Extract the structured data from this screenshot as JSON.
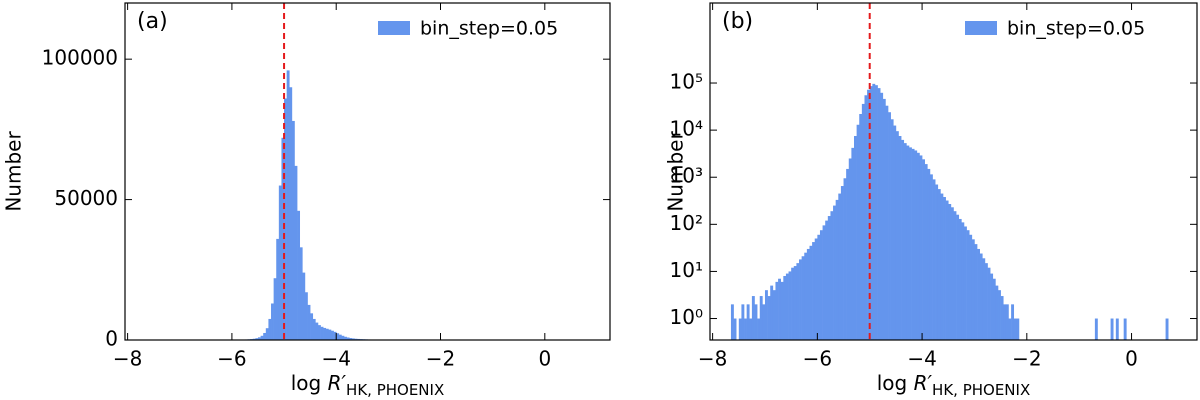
{
  "chart_data": [
    {
      "type": "histogram",
      "panel_label": "(a)",
      "ylabel": "Number",
      "xlabel": {
        "prefix": "log ",
        "symbol": "R′",
        "subscript": "HK, PHOENIX"
      },
      "bins": [
        -7.7,
        -7.65,
        -7.6,
        -7.55,
        -7.5,
        -7.45,
        -7.4,
        -7.35,
        -7.3,
        -7.25,
        -7.2,
        -7.15,
        -7.1,
        -7.05,
        -7,
        -6.95,
        -6.9,
        -6.85,
        -6.8,
        -6.75,
        -6.7,
        -6.65,
        -6.6,
        -6.55,
        -6.5,
        -6.45,
        -6.4,
        -6.35,
        -6.3,
        -6.25,
        -6.2,
        -6.15,
        -6.1,
        -6.05,
        -6,
        -5.95,
        -5.9,
        -5.85,
        -5.8,
        -5.75,
        -5.7,
        -5.65,
        -5.6,
        -5.55,
        -5.5,
        -5.45,
        -5.4,
        -5.35,
        -5.3,
        -5.25,
        -5.2,
        -5.15,
        -5.1,
        -5.05,
        -5,
        -4.95,
        -4.9,
        -4.85,
        -4.8,
        -4.75,
        -4.7,
        -4.65,
        -4.6,
        -4.55,
        -4.5,
        -4.45,
        -4.4,
        -4.35,
        -4.3,
        -4.25,
        -4.2,
        -4.15,
        -4.1,
        -4.05,
        -4,
        -3.95,
        -3.9,
        -3.85,
        -3.8,
        -3.75,
        -3.7,
        -3.65,
        -3.6,
        -3.55,
        -3.5,
        -3.45,
        -3.4,
        -3.35,
        -3.3,
        -3.25,
        -3.2,
        -3.15,
        -3.1,
        -3.05,
        -3,
        -2.95,
        -2.9,
        -2.85,
        -2.8,
        -2.75,
        -2.7,
        -2.65,
        -2.6,
        -2.55,
        -2.5,
        -2.45,
        -2.4,
        -2.35,
        -2.3,
        -2.25,
        -2.2,
        -2.15,
        -2.1,
        -2.05,
        -2,
        -1.95,
        -1.9,
        -1.85,
        -1.8,
        -1.75,
        -1.7,
        -1.65,
        -1.6,
        -1.55,
        -1.5,
        -1.45,
        -1.4,
        -1.35,
        -1.3,
        -1.25,
        -1.2,
        -1.15,
        -1.1,
        -1.05,
        -1,
        -0.95,
        -0.9,
        -0.85,
        -0.8,
        -0.75,
        -0.7,
        -0.65,
        -0.6,
        -0.55,
        -0.5,
        -0.45,
        -0.4,
        -0.35,
        -0.3,
        -0.25,
        -0.2,
        -0.15,
        -0.1,
        -0.05,
        0,
        0.05,
        0.1,
        0.15,
        0.2,
        0.25,
        0.3,
        0.35,
        0.4,
        0.45,
        0.5,
        0.55,
        0.6,
        0.65,
        0.7,
        0.75
      ],
      "series": [
        {
          "name": "bin_step=0.05",
          "color": "#6495ed",
          "values": [
            0,
            2,
            1,
            0,
            1,
            2,
            1,
            2,
            1,
            3,
            2,
            1,
            3,
            2,
            4,
            3,
            5,
            4,
            6,
            7,
            6,
            8,
            9,
            10,
            12,
            13,
            15,
            18,
            21,
            25,
            30,
            35,
            42,
            50,
            60,
            75,
            95,
            120,
            150,
            190,
            250,
            330,
            450,
            650,
            950,
            1500,
            2500,
            4200,
            7500,
            13000,
            22000,
            36000,
            55000,
            72000,
            86000,
            96000,
            90000,
            78000,
            62000,
            46000,
            33000,
            24000,
            17000,
            12500,
            9500,
            7500,
            6200,
            5300,
            4700,
            4300,
            4000,
            3700,
            3300,
            2900,
            2400,
            1900,
            1500,
            1150,
            900,
            700,
            560,
            450,
            380,
            320,
            270,
            230,
            190,
            160,
            130,
            110,
            90,
            75,
            60,
            48,
            38,
            30,
            24,
            19,
            15,
            12,
            9,
            7,
            5,
            4,
            3,
            2,
            2,
            1,
            2,
            1,
            1,
            0,
            0,
            0,
            0,
            0,
            0,
            0,
            0,
            0,
            0,
            0,
            0,
            0,
            0,
            0,
            0,
            0,
            0,
            0,
            0,
            0,
            0,
            0,
            0,
            0,
            0,
            0,
            0,
            0,
            1,
            0,
            0,
            0,
            0,
            0,
            1,
            0,
            1,
            0,
            0,
            1,
            0,
            0,
            0,
            0,
            0,
            0,
            0,
            0,
            0,
            0,
            0,
            0,
            0,
            0,
            0,
            1
          ]
        }
      ],
      "vline": {
        "x": -5,
        "color": "#e41a1c"
      },
      "xlim": [
        -8.05,
        1.25
      ],
      "xticks": [
        {
          "value": -8,
          "label": "−8"
        },
        {
          "value": -6,
          "label": "−6"
        },
        {
          "value": -4,
          "label": "−4"
        },
        {
          "value": -2,
          "label": "−2"
        },
        0
      ],
      "ylim": [
        0,
        120000
      ],
      "yticks": [
        0,
        50000,
        100000
      ],
      "yscale": "linear",
      "legend": "upper right"
    },
    {
      "type": "histogram",
      "panel_label": "(b)",
      "ylabel": "Number",
      "xlabel": {
        "prefix": "log ",
        "symbol": "R′",
        "subscript": "HK, PHOENIX"
      },
      "bins": [
        -7.7,
        -7.65,
        -7.6,
        -7.55,
        -7.5,
        -7.45,
        -7.4,
        -7.35,
        -7.3,
        -7.25,
        -7.2,
        -7.15,
        -7.1,
        -7.05,
        -7,
        -6.95,
        -6.9,
        -6.85,
        -6.8,
        -6.75,
        -6.7,
        -6.65,
        -6.6,
        -6.55,
        -6.5,
        -6.45,
        -6.4,
        -6.35,
        -6.3,
        -6.25,
        -6.2,
        -6.15,
        -6.1,
        -6.05,
        -6,
        -5.95,
        -5.9,
        -5.85,
        -5.8,
        -5.75,
        -5.7,
        -5.65,
        -5.6,
        -5.55,
        -5.5,
        -5.45,
        -5.4,
        -5.35,
        -5.3,
        -5.25,
        -5.2,
        -5.15,
        -5.1,
        -5.05,
        -5,
        -4.95,
        -4.9,
        -4.85,
        -4.8,
        -4.75,
        -4.7,
        -4.65,
        -4.6,
        -4.55,
        -4.5,
        -4.45,
        -4.4,
        -4.35,
        -4.3,
        -4.25,
        -4.2,
        -4.15,
        -4.1,
        -4.05,
        -4,
        -3.95,
        -3.9,
        -3.85,
        -3.8,
        -3.75,
        -3.7,
        -3.65,
        -3.6,
        -3.55,
        -3.5,
        -3.45,
        -3.4,
        -3.35,
        -3.3,
        -3.25,
        -3.2,
        -3.15,
        -3.1,
        -3.05,
        -3,
        -2.95,
        -2.9,
        -2.85,
        -2.8,
        -2.75,
        -2.7,
        -2.65,
        -2.6,
        -2.55,
        -2.5,
        -2.45,
        -2.4,
        -2.35,
        -2.3,
        -2.25,
        -2.2,
        -2.15,
        -2.1,
        -2.05,
        -2,
        -1.95,
        -1.9,
        -1.85,
        -1.8,
        -1.75,
        -1.7,
        -1.65,
        -1.6,
        -1.55,
        -1.5,
        -1.45,
        -1.4,
        -1.35,
        -1.3,
        -1.25,
        -1.2,
        -1.15,
        -1.1,
        -1.05,
        -1,
        -0.95,
        -0.9,
        -0.85,
        -0.8,
        -0.75,
        -0.7,
        -0.65,
        -0.6,
        -0.55,
        -0.5,
        -0.45,
        -0.4,
        -0.35,
        -0.3,
        -0.25,
        -0.2,
        -0.15,
        -0.1,
        -0.05,
        0,
        0.05,
        0.1,
        0.15,
        0.2,
        0.25,
        0.3,
        0.35,
        0.4,
        0.45,
        0.5,
        0.55,
        0.6,
        0.65,
        0.7,
        0.75
      ],
      "series": [
        {
          "name": "bin_step=0.05",
          "color": "#6495ed",
          "values": [
            0,
            2,
            1,
            0,
            1,
            2,
            1,
            2,
            1,
            3,
            2,
            1,
            3,
            2,
            4,
            3,
            5,
            4,
            6,
            7,
            6,
            8,
            9,
            10,
            12,
            13,
            15,
            18,
            21,
            25,
            30,
            35,
            42,
            50,
            60,
            75,
            95,
            120,
            150,
            190,
            250,
            330,
            450,
            650,
            950,
            1500,
            2500,
            4200,
            7500,
            13000,
            22000,
            36000,
            55000,
            72000,
            86000,
            96000,
            90000,
            78000,
            62000,
            46000,
            33000,
            24000,
            17000,
            12500,
            9500,
            7500,
            6200,
            5300,
            4700,
            4300,
            4000,
            3700,
            3300,
            2900,
            2400,
            1900,
            1500,
            1150,
            900,
            700,
            560,
            450,
            380,
            320,
            270,
            230,
            190,
            160,
            130,
            110,
            90,
            75,
            60,
            48,
            38,
            30,
            24,
            19,
            15,
            12,
            9,
            7,
            5,
            4,
            3,
            2,
            2,
            1,
            2,
            1,
            1,
            0,
            0,
            0,
            0,
            0,
            0,
            0,
            0,
            0,
            0,
            0,
            0,
            0,
            0,
            0,
            0,
            0,
            0,
            0,
            0,
            0,
            0,
            0,
            0,
            0,
            0,
            0,
            0,
            0,
            1,
            0,
            0,
            0,
            0,
            0,
            1,
            0,
            1,
            0,
            0,
            1,
            0,
            0,
            0,
            0,
            0,
            0,
            0,
            0,
            0,
            0,
            0,
            0,
            0,
            0,
            0,
            1
          ]
        }
      ],
      "vline": {
        "x": -5,
        "color": "#e41a1c"
      },
      "xlim": [
        -8.05,
        1.25
      ],
      "xticks": [
        {
          "value": -8,
          "label": "−8"
        },
        {
          "value": -6,
          "label": "−6"
        },
        {
          "value": -4,
          "label": "−4"
        },
        {
          "value": -2,
          "label": "−2"
        },
        0
      ],
      "ylim": [
        0.35,
        5000000
      ],
      "yticks": [
        {
          "value": 1,
          "label": "10⁰"
        },
        {
          "value": 10,
          "label": "10¹"
        },
        {
          "value": 100,
          "label": "10²"
        },
        {
          "value": 1000,
          "label": "10³"
        },
        {
          "value": 10000,
          "label": "10⁴"
        },
        {
          "value": 100000,
          "label": "10⁵"
        }
      ],
      "yscale": "log",
      "legend": "upper right"
    }
  ]
}
